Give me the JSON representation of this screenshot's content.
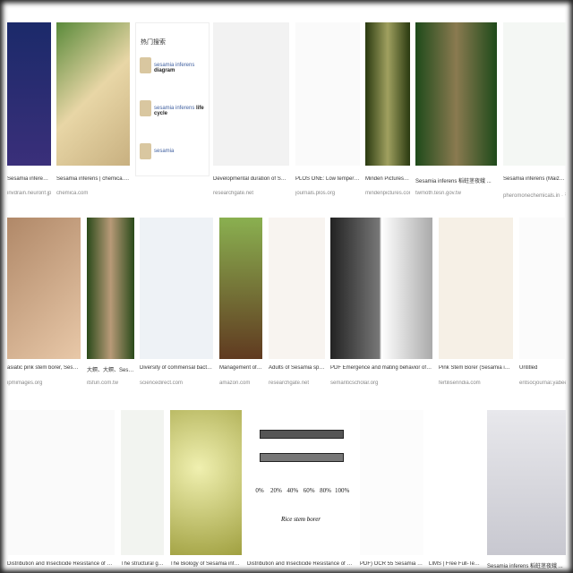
{
  "related": {
    "title": "热门搜索",
    "items": [
      [
        "sesamia inferens",
        "diagram"
      ],
      [
        "sesamia inferens",
        "life cycle"
      ],
      [
        "sesamia",
        ""
      ]
    ]
  },
  "results": [
    [
      {
        "caption": "Sesamia inferens - new...",
        "source": "invdrain.neuronf.jp"
      },
      {
        "caption": "Sesamia inferens | chemica.com",
        "source": "chemica.com"
      },
      {
        "caption": "Developmental duration of Sesamia inferens...",
        "source": "researchgate.net"
      },
      {
        "caption": "PLOS ONE: Low temperature deve...",
        "source": "journals.plos.org"
      },
      {
        "caption": "Minden Pictures - Purpl...",
        "source": "mindenpictures.com"
      },
      {
        "caption": "Sesamia inferens 稻蛀茎夜蛾 ...",
        "source": "twmoth.tesri.gov.tw"
      },
      {
        "caption": "Sesamia inferens (Maize pink ste...",
        "source": "pheromonechemicals.in · 有货"
      }
    ],
    [
      {
        "caption": "asiatic pink stem borer, Sesamia inferens ...",
        "source": "ipmimages.org"
      },
      {
        "caption": "大螟、大螟、Sesamia inf...",
        "source": "itsfun.com.tw"
      },
      {
        "caption": "Diversity of commensal bacteria from mi...",
        "source": "sciencedirect.com"
      },
      {
        "caption": "Management of pink b...",
        "source": "amazon.com"
      },
      {
        "caption": "Adults of Sesamia species. A...",
        "source": "researchgate.net"
      },
      {
        "caption": "PDF Emergence and mating behavior of the pink borer, Ses...",
        "source": "semanticscholar.org"
      },
      {
        "caption": "Pink Stem Borer (Sesamia inferens) Maiz...",
        "source": "fertiliserindia.com"
      },
      {
        "caption": "Untitled",
        "source": "entsocjournal.yabee.com..."
      }
    ],
    [
      {
        "caption": "Distribution and Insecticide Resistance of Pink Stem Borer, Se..."
      },
      {
        "caption": "The structural genetic..."
      },
      {
        "caption": "The Biology of Sesamia inferens (Walk..."
      },
      {
        "caption": "Distribution and Insecticide Resistance of Pink Stem Borer, Se..."
      },
      {
        "caption": "PDF) OCR 55 Sesamia inferens ..."
      },
      {
        "caption": "LIMS | Free Full-Text | The Co..."
      },
      {
        "caption": "Sesamia inferens 稻蛀茎夜蛾 ..."
      }
    ]
  ],
  "inset_chart": {
    "ticks": [
      "0%",
      "20%",
      "40%",
      "60%",
      "80%",
      "100%"
    ],
    "axis_title": "Rice stem borer"
  }
}
